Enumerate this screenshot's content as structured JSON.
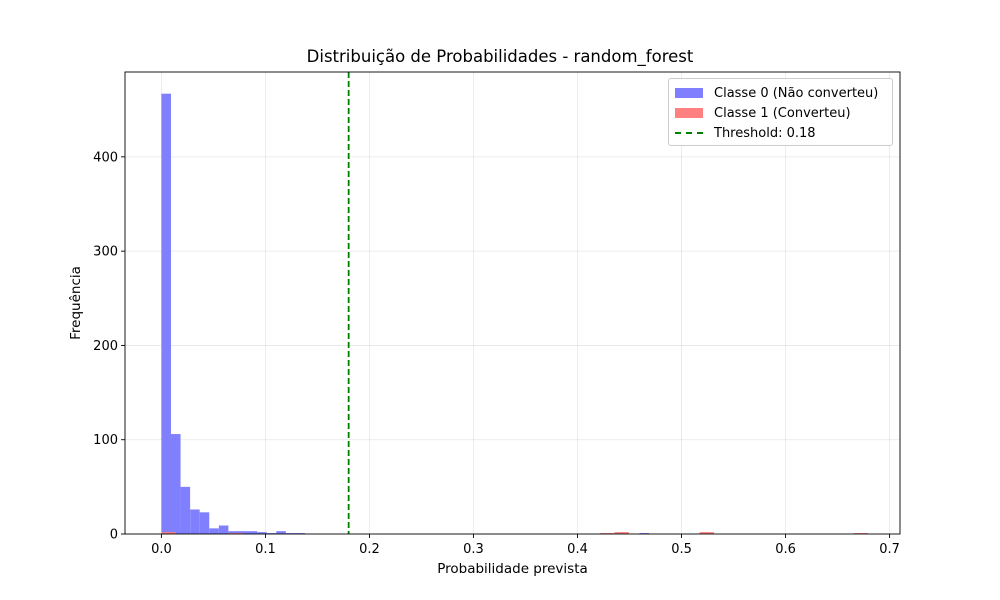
{
  "chart_data": {
    "type": "histogram",
    "title": "Distribuição de Probabilidades - random_forest",
    "xlabel": "Probabilidade prevista",
    "ylabel": "Frequência",
    "xlim": [
      -0.035,
      0.71
    ],
    "ylim": [
      0,
      490
    ],
    "xticks": [
      0.0,
      0.1,
      0.2,
      0.3,
      0.4,
      0.5,
      0.6,
      0.7
    ],
    "xtick_labels": [
      "0.0",
      "0.1",
      "0.2",
      "0.3",
      "0.4",
      "0.5",
      "0.6",
      "0.7"
    ],
    "yticks": [
      0,
      100,
      200,
      300,
      400
    ],
    "ytick_labels": [
      "0",
      "100",
      "200",
      "300",
      "400"
    ],
    "grid": true,
    "legend_position": "top-right",
    "series": [
      {
        "name": "Classe 0 (Não converteu)",
        "color": "#8080ff",
        "bin_width": 0.0092,
        "bins": [
          {
            "x": 0.0,
            "y": 467
          },
          {
            "x": 0.0092,
            "y": 106
          },
          {
            "x": 0.0184,
            "y": 50
          },
          {
            "x": 0.0276,
            "y": 26
          },
          {
            "x": 0.0368,
            "y": 23
          },
          {
            "x": 0.046,
            "y": 6
          },
          {
            "x": 0.0552,
            "y": 9
          },
          {
            "x": 0.0644,
            "y": 3
          },
          {
            "x": 0.0736,
            "y": 3
          },
          {
            "x": 0.0828,
            "y": 3
          },
          {
            "x": 0.092,
            "y": 2
          },
          {
            "x": 0.1012,
            "y": 1
          },
          {
            "x": 0.1104,
            "y": 3
          },
          {
            "x": 0.1196,
            "y": 1
          },
          {
            "x": 0.1288,
            "y": 1
          },
          {
            "x": 0.4596,
            "y": 1
          }
        ]
      },
      {
        "name": "Classe 1 (Converteu)",
        "color": "#ff8080",
        "bin_width": 0.0138,
        "bins": [
          {
            "x": 0.0,
            "y": 2
          },
          {
            "x": 0.0645,
            "y": 1
          },
          {
            "x": 0.4218,
            "y": 1
          },
          {
            "x": 0.4356,
            "y": 2
          },
          {
            "x": 0.5174,
            "y": 2
          },
          {
            "x": 0.6655,
            "y": 1
          }
        ]
      }
    ],
    "threshold": {
      "name": "Threshold: 0.18",
      "value": 0.18,
      "color": "#008000",
      "style": "dashed"
    }
  }
}
